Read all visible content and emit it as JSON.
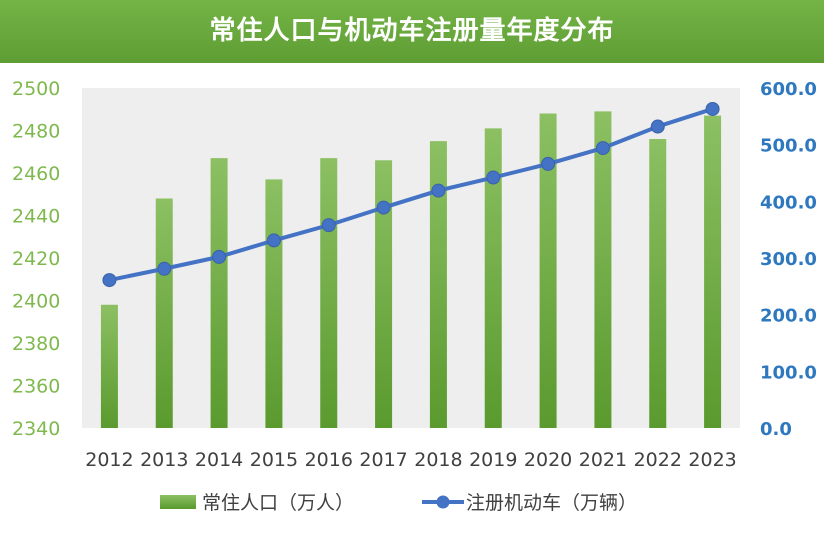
{
  "chart_data": {
    "type": "bar+line",
    "title": "常住人口与机动车注册量年度分布",
    "categories": [
      "2012",
      "2013",
      "2014",
      "2015",
      "2016",
      "2017",
      "2018",
      "2019",
      "2020",
      "2021",
      "2022",
      "2023"
    ],
    "series": [
      {
        "name": "常住人口（万人）",
        "type": "bar",
        "axis": "left",
        "color": "#6aab3c",
        "values": [
          2398,
          2448,
          2467,
          2457,
          2467,
          2466,
          2475,
          2481,
          2488,
          2489,
          2476,
          2487
        ]
      },
      {
        "name": "注册机动车（万辆）",
        "type": "line",
        "axis": "right",
        "color": "#4472c4",
        "values": [
          261,
          281,
          302,
          331,
          358,
          389,
          419,
          442,
          466,
          494,
          532,
          563
        ]
      }
    ],
    "left_axis": {
      "min": 2340,
      "max": 2500,
      "ticks": [
        "2340",
        "2360",
        "2380",
        "2400",
        "2420",
        "2440",
        "2460",
        "2480",
        "2500"
      ]
    },
    "right_axis": {
      "min": 0,
      "max": 600,
      "ticks": [
        "0.0",
        "100.0",
        "200.0",
        "300.0",
        "400.0",
        "500.0",
        "600.0"
      ]
    },
    "legend_position": "bottom",
    "grid": false
  }
}
